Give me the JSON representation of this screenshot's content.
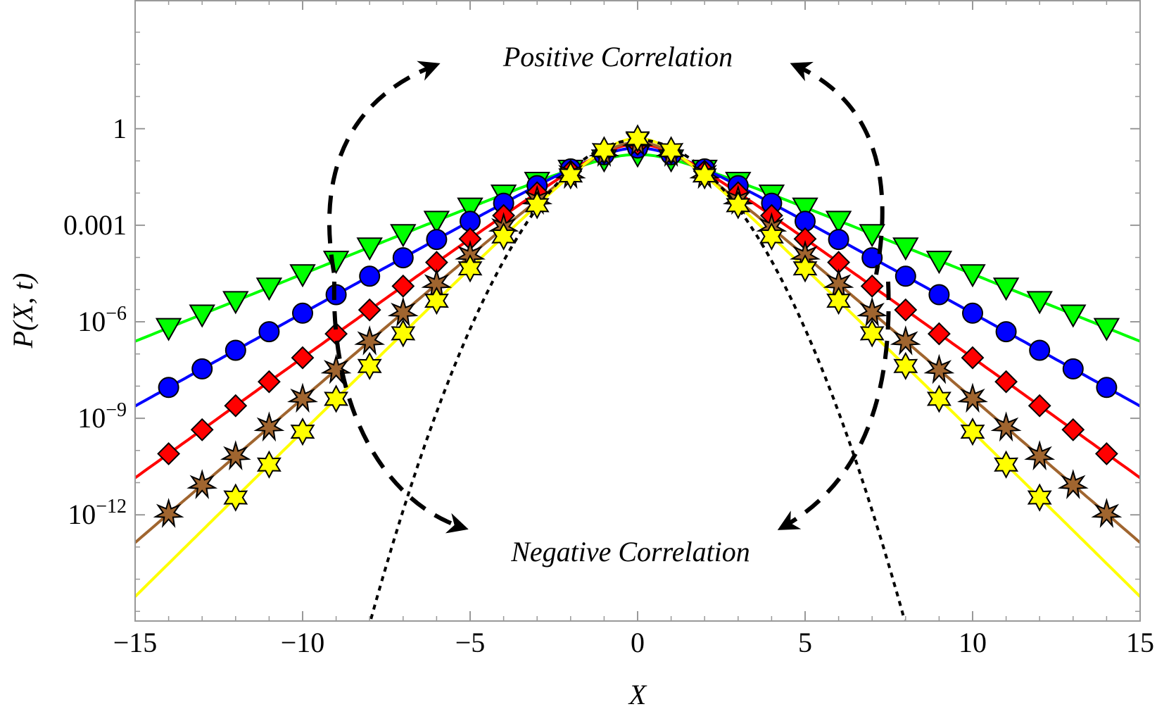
{
  "chart_data": {
    "type": "scatter",
    "xlabel": "X",
    "ylabel": "P(X, t)",
    "xlim": [
      -15,
      15
    ],
    "ylog10lim": [
      -15.3,
      4
    ],
    "yscale": "log",
    "grid": false,
    "x_ticks": [
      -15,
      -10,
      -5,
      0,
      5,
      10,
      15
    ],
    "x_tick_labels": [
      "−15",
      "−10",
      "−5",
      "0",
      "5",
      "10",
      "15"
    ],
    "y_ticks": [
      {
        "exp": 0,
        "base": "1",
        "sup": ""
      },
      {
        "exp": -3,
        "base": "0.001",
        "sup": ""
      },
      {
        "exp": -6,
        "base": "10",
        "sup": "−6"
      },
      {
        "exp": -9,
        "base": "10",
        "sup": "−9"
      },
      {
        "exp": -12,
        "base": "10",
        "sup": "−12"
      }
    ],
    "annotations": {
      "top": "Positive Correlation",
      "bottom": "Negative Correlation"
    },
    "series": [
      {
        "marker": "triangle-down",
        "color": "#00ff00",
        "log10_peak": -0.8,
        "slope": 0.42,
        "x_markers": [
          -14,
          -13,
          -12,
          -11,
          -10,
          -9,
          -8,
          -7,
          -6,
          -5,
          -4,
          -3,
          -2,
          -1,
          0,
          1,
          2,
          3,
          4,
          5,
          6,
          7,
          8,
          9,
          10,
          11,
          12,
          13,
          14
        ]
      },
      {
        "marker": "circle",
        "color": "#0000ff",
        "log10_peak": -0.6,
        "slope": 0.58,
        "x_markers": [
          -14,
          -13,
          -12,
          -11,
          -10,
          -9,
          -8,
          -7,
          -6,
          -5,
          -4,
          -3,
          -2,
          -1,
          0,
          1,
          2,
          3,
          4,
          5,
          6,
          7,
          8,
          9,
          10,
          11,
          12,
          13,
          14
        ]
      },
      {
        "marker": "diamond",
        "color": "#ff0000",
        "log10_peak": -0.48,
        "slope": 0.75,
        "x_markers": [
          -14,
          -13,
          -12,
          -11,
          -10,
          -9,
          -8,
          -7,
          -6,
          -5,
          -4,
          -3,
          -2,
          -1,
          0,
          1,
          2,
          3,
          4,
          5,
          6,
          7,
          8,
          9,
          10,
          11,
          12,
          13,
          14
        ]
      },
      {
        "marker": "star",
        "color": "#a0652f",
        "log10_peak": -0.42,
        "slope": 0.9,
        "x_markers": [
          -14,
          -13,
          -12,
          -11,
          -10,
          -9,
          -8,
          -7,
          -6,
          -5,
          -4,
          -3,
          -2,
          -1,
          0,
          1,
          2,
          3,
          4,
          5,
          6,
          7,
          8,
          9,
          10,
          11,
          12,
          13,
          14
        ]
      },
      {
        "marker": "hexagram",
        "color": "#ffff00",
        "log10_peak": -0.3,
        "slope": 1.03,
        "x_markers": [
          -12,
          -11,
          -10,
          -9,
          -8,
          -7,
          -6,
          -5,
          -4,
          -3,
          -2,
          -1,
          0,
          1,
          2,
          3,
          4,
          5,
          6,
          7,
          8,
          9,
          10,
          11,
          12
        ]
      }
    ],
    "gaussian": {
      "style": "dotted",
      "color": "#000000",
      "log10_peak": -0.35,
      "curvature": 0.235
    }
  }
}
